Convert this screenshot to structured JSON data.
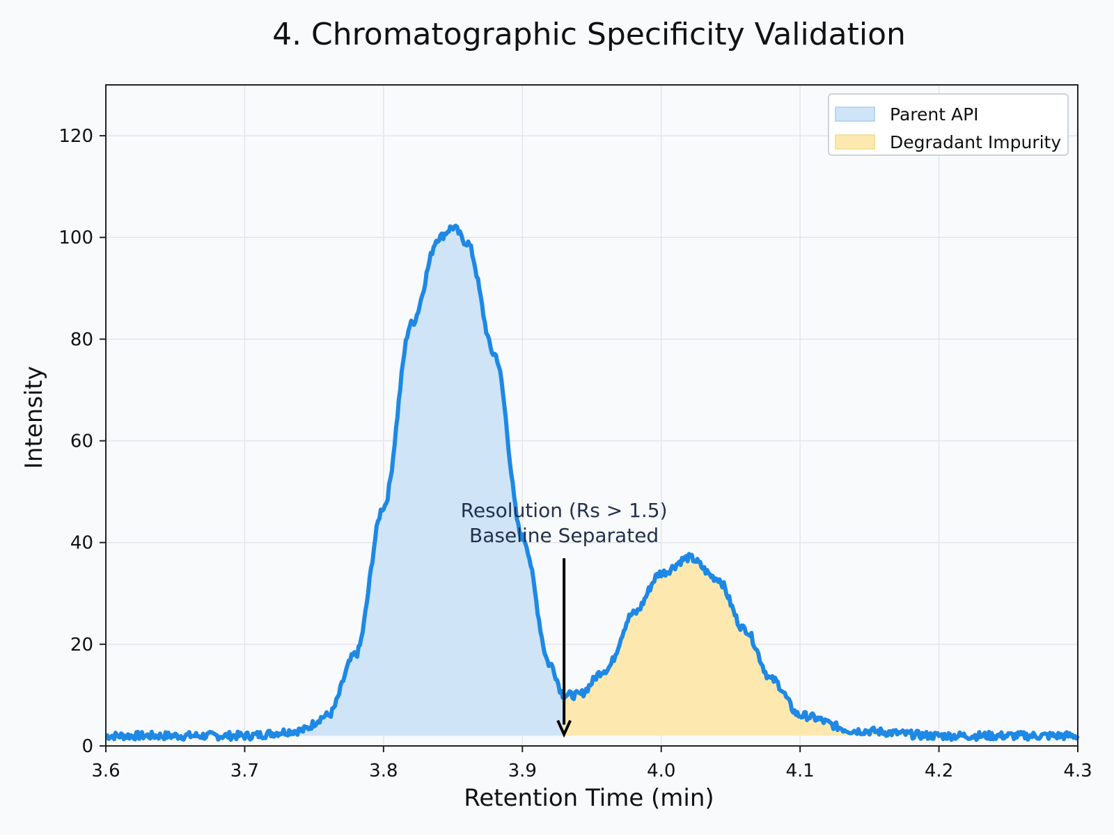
{
  "chart_data": {
    "type": "area",
    "title": "4. Chromatographic Specificity Validation",
    "xlabel": "Retention Time (min)",
    "ylabel": "Intensity",
    "xlim": [
      3.6,
      4.3
    ],
    "ylim": [
      0,
      130
    ],
    "x_ticks": [
      "3.6",
      "3.7",
      "3.8",
      "3.9",
      "4.0",
      "4.1",
      "4.2",
      "4.3"
    ],
    "y_ticks": [
      "0",
      "20",
      "40",
      "60",
      "80",
      "100",
      "120"
    ],
    "grid": true,
    "legend_position": "top-right",
    "x": [
      3.6,
      3.65,
      3.7,
      3.74,
      3.76,
      3.78,
      3.8,
      3.82,
      3.84,
      3.85,
      3.86,
      3.88,
      3.9,
      3.92,
      3.93,
      3.94,
      3.96,
      3.98,
      4.0,
      4.02,
      4.04,
      4.06,
      4.08,
      4.1,
      4.14,
      4.2,
      4.3
    ],
    "y": [
      2,
      2,
      2,
      3,
      6,
      18,
      47,
      83,
      100,
      102,
      99,
      77,
      41,
      16,
      10,
      10,
      15,
      26,
      34,
      37,
      33,
      23,
      13,
      6,
      3,
      2,
      2
    ],
    "split_x": 3.93,
    "series": [
      {
        "name": "Parent API",
        "x_range": [
          3.6,
          3.93
        ],
        "color": "#1e88e5",
        "fill": "#cfe4f6"
      },
      {
        "name": "Degradant Impurity",
        "x_range": [
          3.93,
          4.3
        ],
        "color": "#1e88e5",
        "fill": "#fde9b0"
      }
    ],
    "annotation": {
      "lines": [
        "Resolution (Rs > 1.5)",
        "Baseline Separated"
      ],
      "arrow_x": 3.93,
      "arrow_y_start": 38,
      "arrow_y_end": 2
    }
  }
}
